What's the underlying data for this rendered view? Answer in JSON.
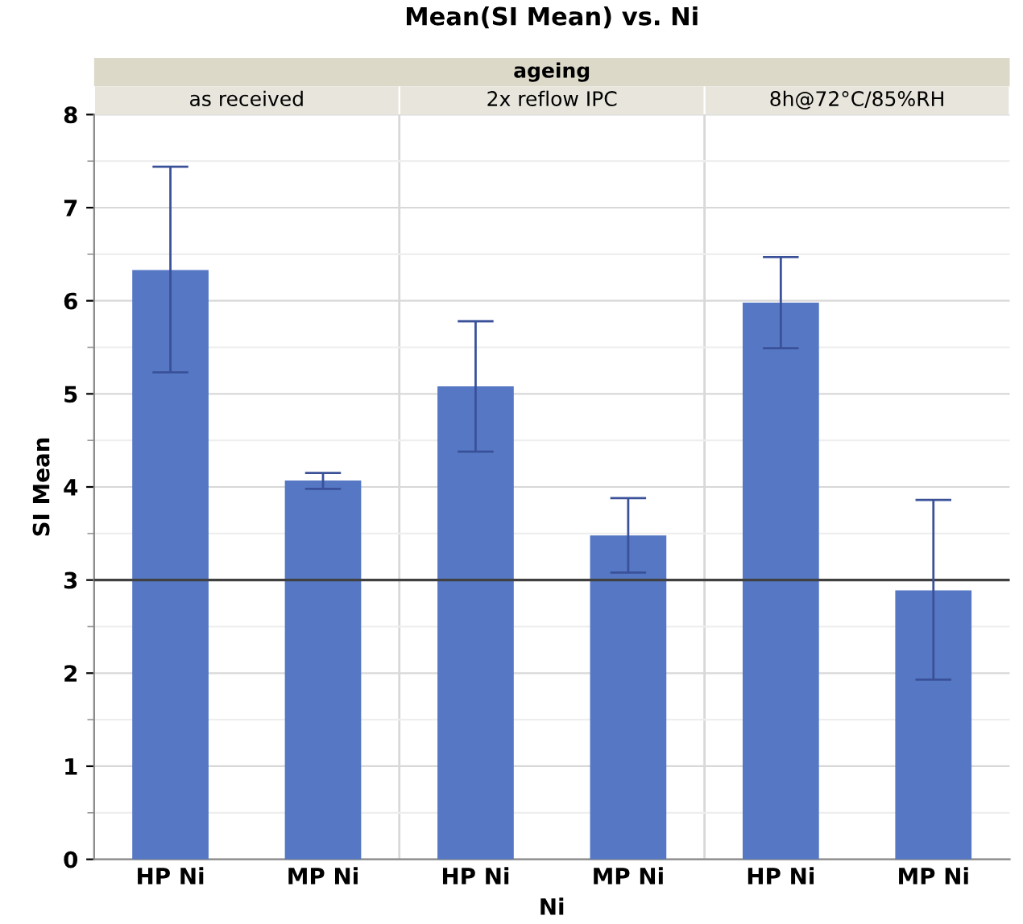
{
  "chart_data": {
    "type": "bar",
    "title": "Mean(SI Mean) vs. Ni",
    "xlabel": "Ni",
    "ylabel": "SI Mean",
    "categories": [
      "HP Ni",
      "MP Ni",
      "HP Ni",
      "MP Ni",
      "HP Ni",
      "MP Ni"
    ],
    "values": [
      6.33,
      4.07,
      5.08,
      3.48,
      5.98,
      2.89
    ],
    "errors": [
      [
        5.23,
        7.44
      ],
      [
        3.98,
        4.15
      ],
      [
        4.38,
        5.78
      ],
      [
        3.08,
        3.88
      ],
      [
        5.49,
        6.47
      ],
      [
        1.93,
        3.86
      ]
    ],
    "color": "#5577c4",
    "annotations": [
      "ageing",
      "as received",
      "2x reflow IPC",
      "8h@72°C/85%RH"
    ],
    "ref_lines": [
      {
        "axis": "y",
        "value": 3,
        "color": "#404040"
      }
    ],
    "ylim": [
      0,
      8
    ],
    "yticks": [
      0,
      1,
      2,
      3,
      4,
      5,
      6,
      7,
      8
    ],
    "grid": "y"
  }
}
